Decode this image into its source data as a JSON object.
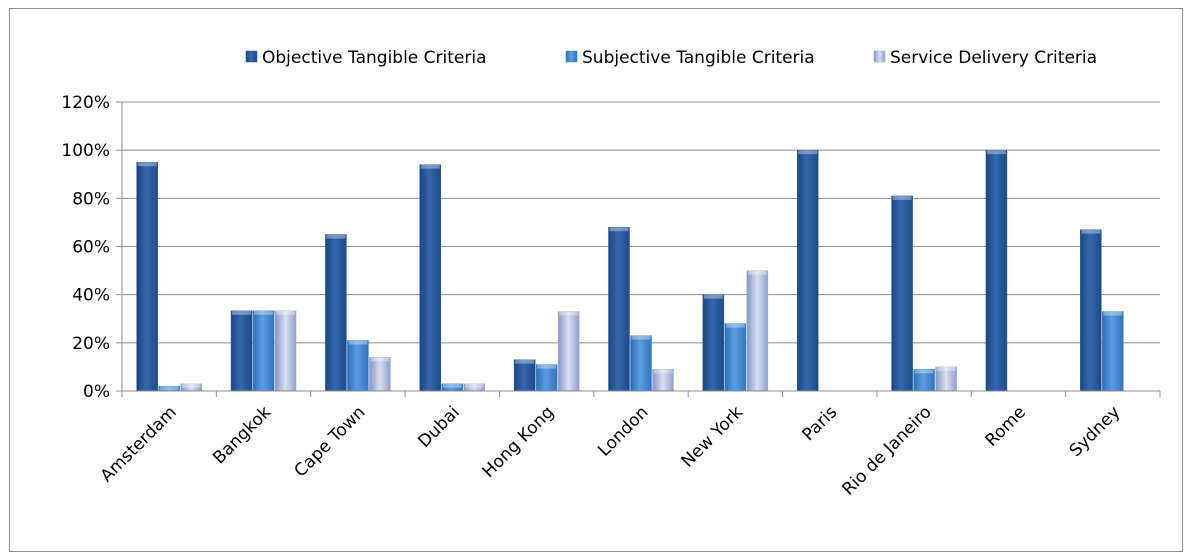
{
  "chart_data": {
    "type": "bar",
    "categories": [
      "Amsterdam",
      "Bangkok",
      "Cape Town",
      "Dubai",
      "Hong Kong",
      "London",
      "New York",
      "Paris",
      "Rio de Janeiro",
      "Rome",
      "Sydney"
    ],
    "series": [
      {
        "name": "Objective Tangible Criteria",
        "color": "#2a5a9c",
        "values": [
          0.95,
          0.333,
          0.65,
          0.94,
          0.13,
          0.68,
          0.4,
          1.0,
          0.81,
          1.0,
          0.67
        ]
      },
      {
        "name": "Subjective Tangible Criteria",
        "color": "#3f84cf",
        "values": [
          0.02,
          0.333,
          0.21,
          0.03,
          0.11,
          0.23,
          0.28,
          0.0,
          0.09,
          0.0,
          0.33
        ]
      },
      {
        "name": "Service Delivery Criteria",
        "color": "#9eaed6",
        "values": [
          0.03,
          0.333,
          0.14,
          0.03,
          0.33,
          0.09,
          0.5,
          0.0,
          0.1,
          0.0,
          0.0
        ]
      }
    ],
    "ylim": [
      0,
      1.2
    ],
    "yticks": [
      "0%",
      "20%",
      "40%",
      "60%",
      "80%",
      "100%",
      "120%"
    ],
    "grid": true,
    "legend_position": "top-right"
  }
}
